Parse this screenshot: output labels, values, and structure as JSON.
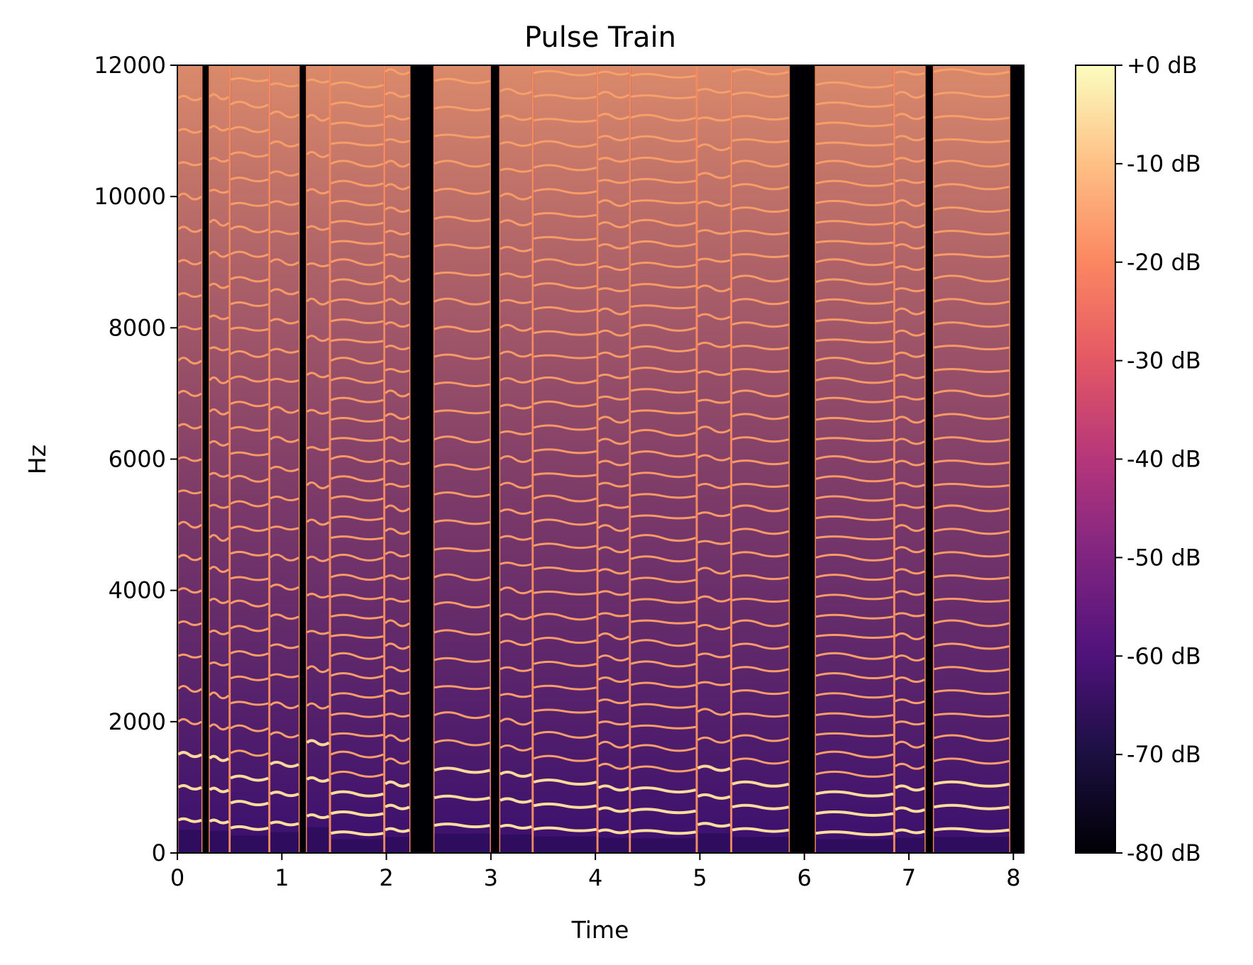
{
  "chart_data": {
    "type": "heatmap",
    "title": "Pulse Train",
    "xlabel": "Time",
    "ylabel": "Hz",
    "xlim": [
      0,
      8.1
    ],
    "ylim": [
      0,
      12000
    ],
    "x_ticks": [
      0,
      1,
      2,
      3,
      4,
      5,
      6,
      7,
      8
    ],
    "x_tick_labels": [
      "0",
      "1",
      "2",
      "3",
      "4",
      "5",
      "6",
      "7",
      "8"
    ],
    "y_ticks": [
      0,
      2000,
      4000,
      6000,
      8000,
      10000,
      12000
    ],
    "y_tick_labels": [
      "0",
      "2000",
      "4000",
      "6000",
      "8000",
      "10000",
      "12000"
    ],
    "colorbar": {
      "colormap": "magma",
      "range_db": [
        -80,
        0
      ],
      "ticks": [
        0,
        -10,
        -20,
        -30,
        -40,
        -50,
        -60,
        -70,
        -80
      ],
      "tick_labels": [
        "+0 dB",
        "-10 dB",
        "-20 dB",
        "-30 dB",
        "-40 dB",
        "-50 dB",
        "-60 dB",
        "-70 dB",
        "-80 dB"
      ]
    },
    "silent_gaps_time": [
      [
        0.24,
        0.3
      ],
      [
        1.17,
        1.23
      ],
      [
        2.23,
        2.45
      ],
      [
        3.0,
        3.08
      ],
      [
        5.86,
        6.1
      ],
      [
        7.16,
        7.23
      ],
      [
        7.97,
        8.1
      ]
    ],
    "segments": [
      {
        "start": 0.0,
        "end": 0.24,
        "f0": 500
      },
      {
        "start": 0.3,
        "end": 0.5,
        "f0": 480
      },
      {
        "start": 0.5,
        "end": 0.88,
        "f0": 380
      },
      {
        "start": 0.88,
        "end": 1.17,
        "f0": 450
      },
      {
        "start": 1.23,
        "end": 1.46,
        "f0": 560
      },
      {
        "start": 1.46,
        "end": 1.98,
        "f0": 300
      },
      {
        "start": 1.98,
        "end": 2.23,
        "f0": 350
      },
      {
        "start": 2.45,
        "end": 3.0,
        "f0": 420
      },
      {
        "start": 3.08,
        "end": 3.4,
        "f0": 400
      },
      {
        "start": 3.4,
        "end": 4.02,
        "f0": 360
      },
      {
        "start": 4.02,
        "end": 4.33,
        "f0": 330
      },
      {
        "start": 4.33,
        "end": 4.97,
        "f0": 320
      },
      {
        "start": 4.97,
        "end": 5.3,
        "f0": 430
      },
      {
        "start": 5.3,
        "end": 5.86,
        "f0": 350
      },
      {
        "start": 6.1,
        "end": 6.86,
        "f0": 300
      },
      {
        "start": 6.86,
        "end": 7.16,
        "f0": 330
      },
      {
        "start": 7.23,
        "end": 7.97,
        "f0": 350
      }
    ]
  }
}
